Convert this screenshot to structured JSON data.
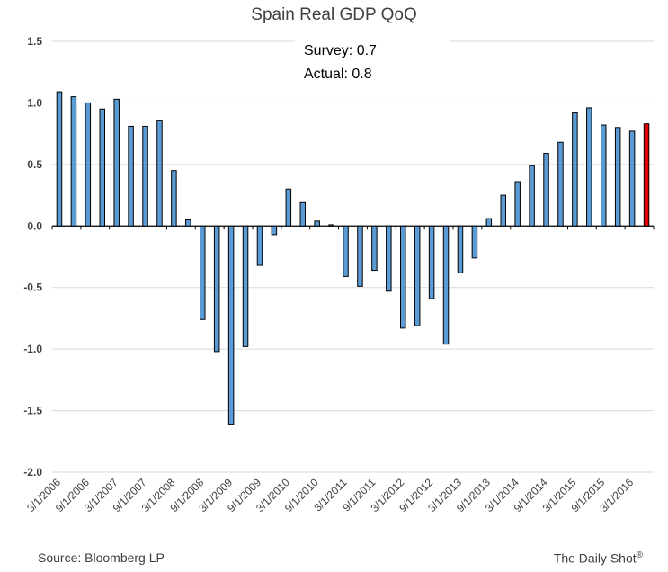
{
  "chart_data": {
    "type": "bar",
    "title": "Spain Real GDP QoQ",
    "annotation": {
      "survey": "Survey: 0.7",
      "actual": "Actual:  0.8"
    },
    "source": "Source: Bloomberg LP",
    "brand": "The Daily Shot",
    "brand_mark": "®",
    "ylim": [
      -2.0,
      1.5
    ],
    "yticks": [
      "1.5",
      "1.0",
      "0.5",
      "0.0",
      "-0.5",
      "-1.0",
      "-1.5",
      "-2.0"
    ],
    "xtick_labels": [
      "3/1/2006",
      "9/1/2006",
      "3/1/2007",
      "9/1/2007",
      "3/1/2008",
      "9/1/2008",
      "3/1/2009",
      "9/1/2009",
      "3/1/2010",
      "9/1/2010",
      "3/1/2011",
      "9/1/2011",
      "3/1/2012",
      "9/1/2012",
      "3/1/2013",
      "9/1/2013",
      "3/1/2014",
      "9/1/2014",
      "3/1/2015",
      "9/1/2015",
      "3/1/2016"
    ],
    "values": [
      1.09,
      1.05,
      1.0,
      0.95,
      1.03,
      0.81,
      0.81,
      0.86,
      0.45,
      0.05,
      -0.76,
      -1.02,
      -1.61,
      -0.98,
      -0.32,
      -0.07,
      0.3,
      0.19,
      0.04,
      0.01,
      -0.41,
      -0.49,
      -0.36,
      -0.53,
      -0.83,
      -0.81,
      -0.59,
      -0.96,
      -0.38,
      -0.26,
      0.06,
      0.25,
      0.36,
      0.49,
      0.59,
      0.68,
      0.92,
      0.96,
      0.82,
      0.8,
      0.77,
      0.83
    ],
    "bar_color": "#5B9BD5",
    "highlight_color": "#E00000",
    "highlight_index": 41,
    "grid": true
  }
}
